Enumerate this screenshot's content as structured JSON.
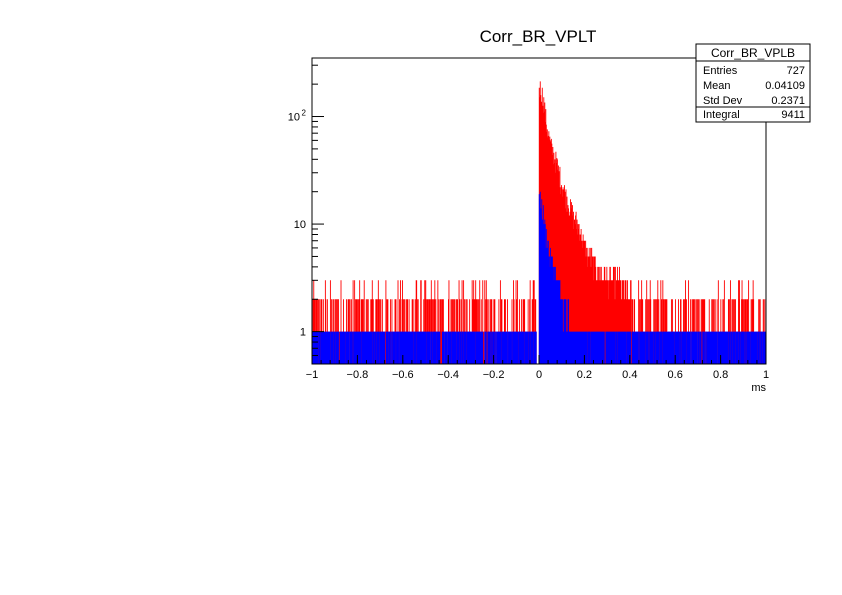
{
  "chart_data": {
    "type": "histogram",
    "title": "Corr_BR_VPLT",
    "xlabel": "ms",
    "ylabel": "",
    "xlim": [
      -1,
      1
    ],
    "ylim": [
      0.5,
      350
    ],
    "yscale": "log",
    "x_ticks": [
      "−1",
      "−0.8",
      "−0.6",
      "−0.4",
      "−0.2",
      "0",
      "0.2",
      "0.4",
      "0.6",
      "0.8",
      "1"
    ],
    "x_tick_values": [
      -1,
      -0.8,
      -0.6,
      -0.4,
      -0.2,
      0,
      0.2,
      0.4,
      0.6,
      0.8,
      1
    ],
    "y_ticks": [
      {
        "value": 1,
        "label": "1",
        "sup": ""
      },
      {
        "value": 10,
        "label": "10",
        "sup": ""
      },
      {
        "value": 100,
        "label": "10",
        "sup": "2"
      }
    ],
    "series": [
      {
        "color": "#ff0000",
        "baseline_max": 3,
        "peak": {
          "x": [
            0.0,
            0.01,
            0.02,
            0.03,
            0.05,
            0.08,
            0.1,
            0.12,
            0.15,
            0.18,
            0.2,
            0.25,
            0.3,
            0.35,
            0.4
          ],
          "y": [
            190,
            175,
            140,
            95,
            55,
            35,
            24,
            18,
            12,
            9,
            6,
            4,
            3,
            3,
            2
          ]
        }
      },
      {
        "color": "#0000ff",
        "baseline_max": 1,
        "peak": {
          "x": [
            0.0,
            0.01,
            0.02,
            0.03,
            0.05,
            0.08,
            0.1,
            0.15,
            0.2
          ],
          "y": [
            18,
            15,
            12,
            8,
            5,
            3,
            2,
            1,
            1
          ]
        }
      }
    ],
    "stats_box": {
      "title": "Corr_BR_VPLB",
      "rows": [
        {
          "label": "Entries",
          "value": "727"
        },
        {
          "label": "Mean",
          "value": "0.04109"
        },
        {
          "label": "Std Dev",
          "value": "0.2371"
        },
        {
          "label": "Integral",
          "value": "9411"
        }
      ]
    }
  }
}
